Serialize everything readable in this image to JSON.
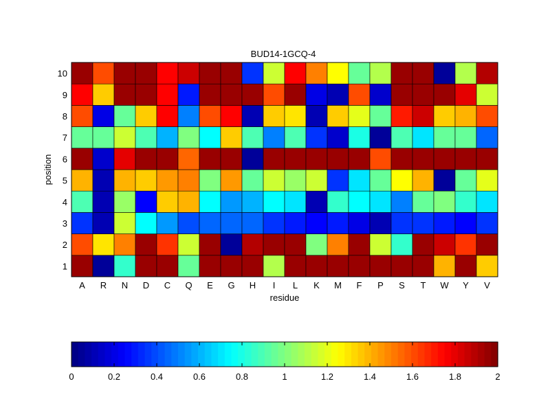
{
  "chart_data": {
    "type": "heatmap",
    "title": "BUD14-1GCQ-4",
    "xlabel": "residue",
    "ylabel": "position",
    "x_categories": [
      "A",
      "R",
      "N",
      "D",
      "C",
      "Q",
      "E",
      "G",
      "H",
      "I",
      "L",
      "K",
      "M",
      "F",
      "P",
      "S",
      "T",
      "W",
      "Y",
      "V"
    ],
    "y_categories": [
      "1",
      "2",
      "3",
      "4",
      "5",
      "6",
      "7",
      "8",
      "9",
      "10"
    ],
    "values": [
      [
        1.95,
        0.05,
        0.85,
        1.95,
        1.95,
        0.95,
        1.95,
        1.95,
        1.95,
        1.1,
        1.95,
        1.95,
        1.95,
        1.95,
        1.95,
        1.95,
        1.95,
        1.4,
        1.95,
        1.35
      ],
      [
        1.6,
        1.3,
        1.5,
        1.95,
        1.65,
        1.15,
        1.95,
        0.05,
        1.9,
        1.95,
        1.95,
        1.0,
        1.5,
        1.95,
        1.15,
        0.85,
        1.95,
        1.85,
        1.65,
        1.95
      ],
      [
        0.35,
        0.1,
        1.15,
        0.75,
        0.55,
        0.4,
        0.45,
        0.45,
        0.45,
        0.35,
        0.3,
        0.25,
        0.3,
        0.2,
        0.1,
        0.35,
        0.35,
        0.3,
        0.25,
        0.35
      ],
      [
        0.9,
        0.1,
        1.05,
        0.25,
        1.35,
        1.4,
        0.75,
        0.55,
        0.6,
        0.75,
        0.7,
        0.1,
        0.85,
        0.75,
        0.7,
        0.5,
        0.95,
        1.0,
        0.85,
        0.7
      ],
      [
        1.4,
        0.1,
        1.4,
        1.35,
        1.45,
        1.5,
        1.0,
        1.45,
        0.95,
        1.15,
        1.05,
        1.15,
        0.35,
        0.7,
        0.95,
        1.25,
        1.4,
        0.05,
        0.95,
        1.2
      ],
      [
        1.95,
        0.15,
        1.8,
        1.95,
        1.95,
        1.55,
        1.95,
        1.95,
        0.05,
        1.95,
        1.95,
        1.95,
        1.95,
        1.95,
        1.6,
        1.95,
        1.95,
        1.95,
        1.95,
        1.95
      ],
      [
        0.95,
        0.95,
        1.15,
        0.9,
        0.6,
        1.0,
        0.75,
        1.35,
        0.9,
        0.5,
        0.9,
        0.35,
        0.15,
        0.8,
        0.05,
        0.9,
        0.7,
        0.95,
        0.95,
        0.45
      ],
      [
        1.6,
        0.2,
        0.95,
        1.35,
        1.75,
        0.5,
        1.6,
        1.75,
        0.1,
        1.35,
        1.3,
        0.1,
        1.35,
        1.2,
        0.95,
        1.7,
        1.85,
        1.35,
        1.4,
        1.6
      ],
      [
        1.75,
        1.35,
        1.95,
        1.95,
        1.75,
        0.3,
        1.95,
        1.95,
        1.95,
        1.6,
        1.95,
        0.2,
        0.1,
        1.6,
        0.15,
        1.95,
        1.95,
        1.95,
        1.8,
        1.15
      ],
      [
        1.95,
        1.6,
        1.95,
        1.95,
        1.75,
        1.85,
        1.95,
        1.95,
        0.35,
        1.15,
        1.75,
        1.5,
        1.25,
        0.95,
        1.1,
        1.95,
        1.95,
        0.05,
        1.1,
        1.9
      ]
    ],
    "value_range": [
      0,
      2
    ],
    "colormap": "jet",
    "grid": false,
    "colorbar": {
      "placement": "bottom",
      "ticks": [
        "0",
        "0.2",
        "0.4",
        "0.6",
        "0.8",
        "1",
        "1.2",
        "1.4",
        "1.6",
        "1.8",
        "2"
      ]
    }
  }
}
